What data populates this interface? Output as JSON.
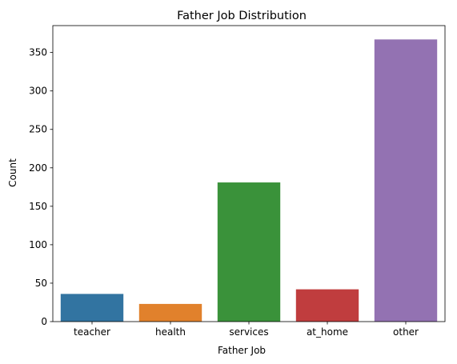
{
  "chart_data": {
    "type": "bar",
    "title": "Father Job Distribution",
    "xlabel": "Father Job",
    "ylabel": "Count",
    "categories": [
      "teacher",
      "health",
      "services",
      "at_home",
      "other"
    ],
    "values": [
      36,
      23,
      181,
      42,
      367
    ],
    "colors": [
      "#3274a1",
      "#e1812c",
      "#3a923a",
      "#c03d3e",
      "#9372b2"
    ],
    "ylim": [
      0,
      385
    ],
    "yticks": [
      0,
      50,
      100,
      150,
      200,
      250,
      300,
      350
    ],
    "grid": false,
    "legend": "none"
  }
}
